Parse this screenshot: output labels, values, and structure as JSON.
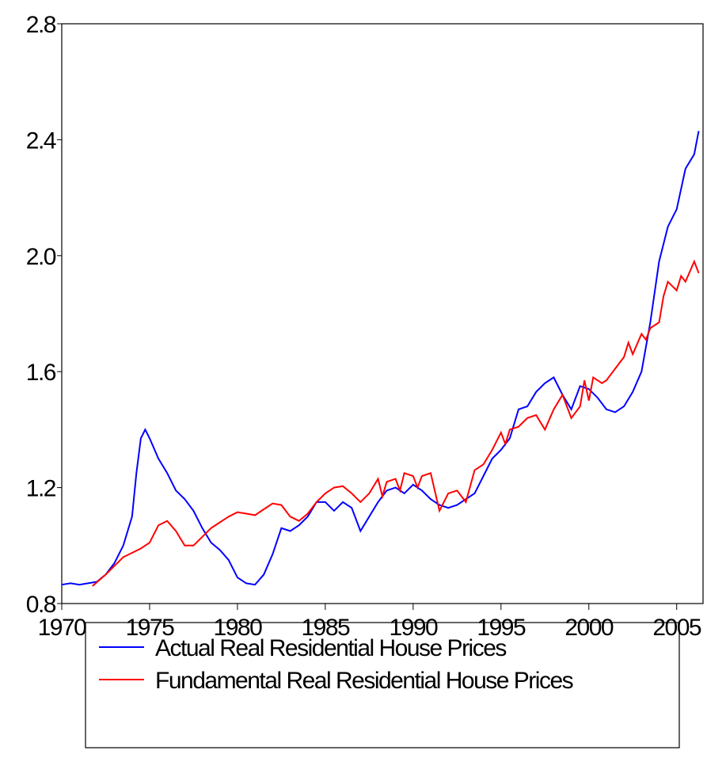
{
  "chart_data": {
    "type": "line",
    "xlim": [
      1970,
      2006.5
    ],
    "xticks": [
      1970,
      1975,
      1980,
      1985,
      1990,
      1995,
      2000,
      2005
    ],
    "ylim": [
      0.8,
      2.8
    ],
    "yticks": [
      0.8,
      1.2,
      1.6,
      {
        "value": 2,
        "label": "2.0"
      },
      2.4,
      2.8
    ],
    "legend": "bottom",
    "series": [
      {
        "name": "Actual Real Residential House Prices",
        "color": "#0000ff",
        "x": [
          1970,
          1970.5,
          1971,
          1971.5,
          1972,
          1972.5,
          1973,
          1973.5,
          1974,
          1974.25,
          1974.5,
          1974.75,
          1975,
          1975.5,
          1976,
          1976.5,
          1977,
          1977.5,
          1978,
          1978.5,
          1979,
          1979.5,
          1980,
          1980.5,
          1981,
          1981.5,
          1982,
          1982.5,
          1983,
          1983.5,
          1984,
          1984.5,
          1985,
          1985.5,
          1986,
          1986.5,
          1987,
          1987.5,
          1988,
          1988.5,
          1989,
          1989.5,
          1990,
          1990.5,
          1991,
          1991.5,
          1992,
          1992.5,
          1993,
          1993.5,
          1994,
          1994.5,
          1995,
          1995.5,
          1996,
          1996.5,
          1997,
          1997.5,
          1998,
          1998.5,
          1999,
          1999.5,
          2000,
          2000.5,
          2001,
          2001.5,
          2002,
          2002.5,
          2003,
          2003.5,
          2004,
          2004.5,
          2005,
          2005.5,
          2006,
          2006.25
        ],
        "values": [
          0.865,
          0.87,
          0.865,
          0.87,
          0.875,
          0.9,
          0.94,
          1.0,
          1.1,
          1.25,
          1.37,
          1.4,
          1.37,
          1.3,
          1.25,
          1.19,
          1.16,
          1.12,
          1.06,
          1.01,
          0.985,
          0.95,
          0.89,
          0.87,
          0.865,
          0.9,
          0.97,
          1.06,
          1.05,
          1.07,
          1.1,
          1.15,
          1.15,
          1.12,
          1.15,
          1.13,
          1.05,
          1.1,
          1.15,
          1.19,
          1.2,
          1.18,
          1.21,
          1.19,
          1.16,
          1.14,
          1.13,
          1.14,
          1.16,
          1.18,
          1.24,
          1.3,
          1.33,
          1.37,
          1.47,
          1.48,
          1.53,
          1.56,
          1.58,
          1.52,
          1.47,
          1.55,
          1.54,
          1.51,
          1.47,
          1.46,
          1.48,
          1.53,
          1.6,
          1.77,
          1.98,
          2.1,
          2.16,
          2.3,
          2.35,
          2.43
        ]
      },
      {
        "name": "Fundamental Real Residential House Prices",
        "color": "#ff0000",
        "x": [
          1971.75,
          1972.5,
          1973,
          1973.5,
          1974,
          1974.5,
          1975,
          1975.5,
          1976,
          1976.5,
          1977,
          1977.5,
          1978,
          1978.5,
          1979,
          1979.5,
          1980,
          1980.5,
          1981,
          1981.5,
          1982,
          1982.5,
          1983,
          1983.5,
          1984,
          1984.5,
          1985,
          1985.5,
          1986,
          1986.5,
          1987,
          1987.5,
          1988,
          1988.25,
          1988.5,
          1989,
          1989.25,
          1989.5,
          1990,
          1990.25,
          1990.5,
          1991,
          1991.5,
          1992,
          1992.5,
          1993,
          1993.5,
          1994,
          1994.5,
          1995,
          1995.25,
          1995.5,
          1996,
          1996.5,
          1997,
          1997.5,
          1998,
          1998.5,
          1999,
          1999.5,
          1999.75,
          2000,
          2000.25,
          2000.75,
          2001,
          2001.5,
          2002,
          2002.25,
          2002.5,
          2003,
          2003.25,
          2003.5,
          2004,
          2004.25,
          2004.5,
          2005,
          2005.25,
          2005.5,
          2006,
          2006.25
        ],
        "values": [
          0.86,
          0.9,
          0.93,
          0.96,
          0.975,
          0.99,
          1.01,
          1.07,
          1.085,
          1.05,
          1.0,
          1.0,
          1.03,
          1.06,
          1.08,
          1.1,
          1.115,
          1.11,
          1.105,
          1.125,
          1.145,
          1.14,
          1.1,
          1.085,
          1.11,
          1.15,
          1.18,
          1.2,
          1.205,
          1.18,
          1.15,
          1.18,
          1.23,
          1.17,
          1.22,
          1.23,
          1.19,
          1.25,
          1.24,
          1.2,
          1.24,
          1.25,
          1.12,
          1.18,
          1.19,
          1.15,
          1.26,
          1.28,
          1.33,
          1.39,
          1.35,
          1.4,
          1.41,
          1.44,
          1.45,
          1.4,
          1.47,
          1.52,
          1.44,
          1.48,
          1.57,
          1.5,
          1.58,
          1.56,
          1.57,
          1.61,
          1.65,
          1.7,
          1.66,
          1.73,
          1.71,
          1.75,
          1.77,
          1.86,
          1.91,
          1.88,
          1.93,
          1.91,
          1.98,
          1.94
        ]
      }
    ]
  }
}
